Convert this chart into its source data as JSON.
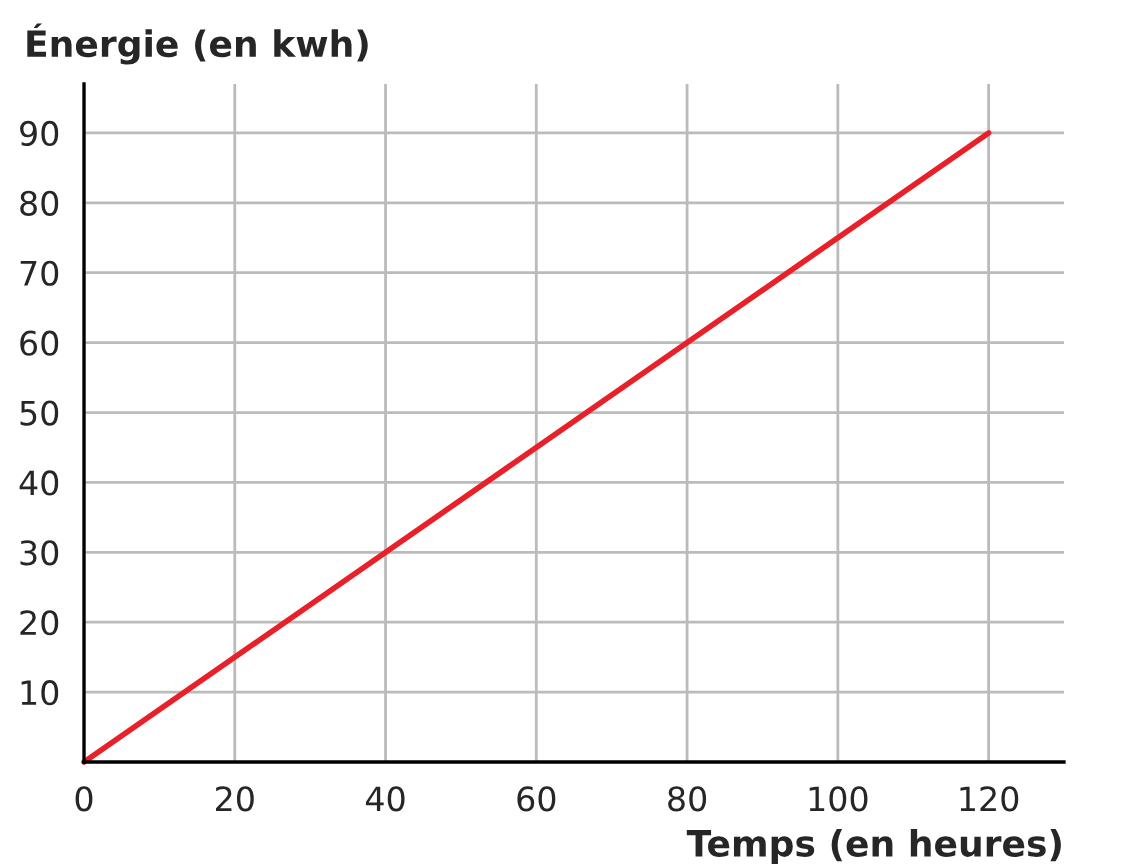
{
  "chart_data": {
    "type": "line",
    "xlabel": "Temps (en heures)",
    "ylabel": "Énergie (en kwh)",
    "x": [
      0,
      120
    ],
    "series": [
      {
        "color": "#e8202a",
        "values": [
          0,
          90
        ]
      }
    ],
    "xlim": [
      0,
      130
    ],
    "ylim": [
      0,
      97
    ],
    "xticks": [
      0,
      20,
      40,
      60,
      80,
      100,
      120
    ],
    "yticks": [
      10,
      20,
      30,
      40,
      50,
      60,
      70,
      80,
      90
    ],
    "grid": true,
    "marker": "none",
    "line_style": "solid"
  }
}
